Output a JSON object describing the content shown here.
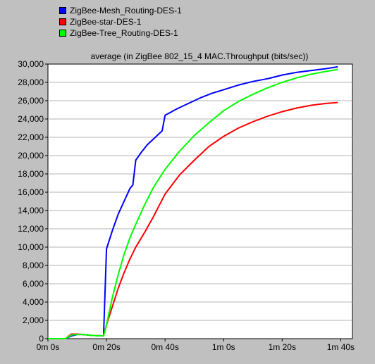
{
  "chart_data": {
    "type": "line",
    "title": "average (in ZigBee 802_15_4 MAC.Throughput (bits/sec))",
    "xlabel": "",
    "ylabel": "",
    "xlim": [
      0,
      104
    ],
    "ylim": [
      0,
      30000
    ],
    "grid": true,
    "legend_position": "top-left",
    "x_ticks": [
      {
        "value": 0,
        "label": "0m 0s"
      },
      {
        "value": 20,
        "label": "0m 20s"
      },
      {
        "value": 40,
        "label": "0m 40s"
      },
      {
        "value": 60,
        "label": "1m 0s"
      },
      {
        "value": 80,
        "label": "1m 20s"
      },
      {
        "value": 100,
        "label": "1m 40s"
      }
    ],
    "y_ticks": [
      {
        "value": 0,
        "label": "0"
      },
      {
        "value": 2000,
        "label": "2,000"
      },
      {
        "value": 4000,
        "label": "4,000"
      },
      {
        "value": 6000,
        "label": "6,000"
      },
      {
        "value": 8000,
        "label": "8,000"
      },
      {
        "value": 10000,
        "label": "10,000"
      },
      {
        "value": 12000,
        "label": "12,000"
      },
      {
        "value": 14000,
        "label": "14,000"
      },
      {
        "value": 16000,
        "label": "16,000"
      },
      {
        "value": 18000,
        "label": "18,000"
      },
      {
        "value": 20000,
        "label": "20,000"
      },
      {
        "value": 22000,
        "label": "22,000"
      },
      {
        "value": 24000,
        "label": "24,000"
      },
      {
        "value": 26000,
        "label": "26,000"
      },
      {
        "value": 28000,
        "label": "28,000"
      },
      {
        "value": 30000,
        "label": "30,000"
      }
    ],
    "series": [
      {
        "name": "ZigBee-Mesh_Routing-DES-1",
        "color": "#0000ff",
        "points": [
          [
            0,
            0
          ],
          [
            6,
            0
          ],
          [
            8,
            300
          ],
          [
            10,
            450
          ],
          [
            12,
            450
          ],
          [
            15,
            350
          ],
          [
            19,
            300
          ],
          [
            20,
            9800
          ],
          [
            22,
            11800
          ],
          [
            24,
            13600
          ],
          [
            26,
            15000
          ],
          [
            28,
            16400
          ],
          [
            29,
            16800
          ],
          [
            30,
            19500
          ],
          [
            32,
            20400
          ],
          [
            34,
            21200
          ],
          [
            36,
            21800
          ],
          [
            38,
            22400
          ],
          [
            39,
            22700
          ],
          [
            40,
            24400
          ],
          [
            44,
            25100
          ],
          [
            48,
            25700
          ],
          [
            52,
            26300
          ],
          [
            56,
            26800
          ],
          [
            60,
            27200
          ],
          [
            65,
            27700
          ],
          [
            70,
            28100
          ],
          [
            75,
            28400
          ],
          [
            80,
            28800
          ],
          [
            85,
            29100
          ],
          [
            90,
            29300
          ],
          [
            95,
            29500
          ],
          [
            99,
            29700
          ]
        ]
      },
      {
        "name": "ZigBee-star-DES-1",
        "color": "#ff0000",
        "points": [
          [
            0,
            0
          ],
          [
            6,
            0
          ],
          [
            8,
            500
          ],
          [
            10,
            500
          ],
          [
            12,
            450
          ],
          [
            15,
            350
          ],
          [
            19,
            300
          ],
          [
            20,
            1500
          ],
          [
            22,
            3500
          ],
          [
            24,
            5500
          ],
          [
            26,
            7200
          ],
          [
            28,
            8700
          ],
          [
            30,
            10000
          ],
          [
            33,
            11600
          ],
          [
            36,
            13300
          ],
          [
            40,
            15800
          ],
          [
            45,
            17900
          ],
          [
            50,
            19500
          ],
          [
            55,
            21000
          ],
          [
            60,
            22100
          ],
          [
            65,
            23000
          ],
          [
            70,
            23700
          ],
          [
            75,
            24300
          ],
          [
            80,
            24800
          ],
          [
            85,
            25200
          ],
          [
            90,
            25500
          ],
          [
            95,
            25700
          ],
          [
            99,
            25800
          ]
        ]
      },
      {
        "name": "ZigBee-Tree_Routing-DES-1",
        "color": "#00ff00",
        "points": [
          [
            0,
            0
          ],
          [
            6,
            0
          ],
          [
            8,
            400
          ],
          [
            10,
            450
          ],
          [
            12,
            450
          ],
          [
            15,
            350
          ],
          [
            19,
            300
          ],
          [
            20,
            1500
          ],
          [
            22,
            4500
          ],
          [
            24,
            7000
          ],
          [
            26,
            9200
          ],
          [
            28,
            11000
          ],
          [
            30,
            12500
          ],
          [
            33,
            14600
          ],
          [
            36,
            16500
          ],
          [
            40,
            18500
          ],
          [
            45,
            20500
          ],
          [
            50,
            22200
          ],
          [
            55,
            23600
          ],
          [
            60,
            24900
          ],
          [
            65,
            25900
          ],
          [
            70,
            26700
          ],
          [
            75,
            27400
          ],
          [
            80,
            28000
          ],
          [
            85,
            28500
          ],
          [
            90,
            28900
          ],
          [
            95,
            29200
          ],
          [
            99,
            29400
          ]
        ]
      }
    ]
  }
}
